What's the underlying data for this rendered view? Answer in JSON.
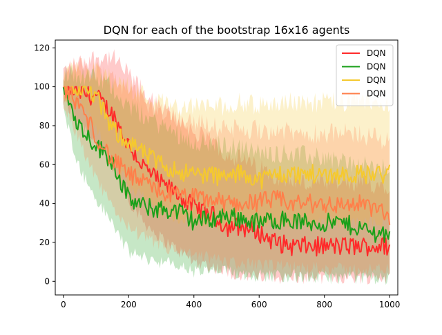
{
  "chart_data": {
    "type": "line",
    "title": "DQN for each of the bootstrap 16x16 agents",
    "xlabel": "",
    "ylabel": "",
    "xlim": [
      -25,
      1025
    ],
    "ylim": [
      -7,
      124
    ],
    "x_ticks": [
      0,
      200,
      400,
      600,
      800,
      1000
    ],
    "y_ticks": [
      0,
      20,
      40,
      60,
      80,
      100,
      120
    ],
    "grid": false,
    "legend_position": "top-right",
    "series": [
      {
        "name": "DQN",
        "color": "#ff2a2a",
        "band_alpha": 0.25,
        "x": [
          0,
          50,
          100,
          150,
          200,
          250,
          300,
          350,
          400,
          450,
          500,
          550,
          600,
          650,
          700,
          750,
          800,
          850,
          900,
          950,
          1000
        ],
        "mean": [
          100,
          97,
          95,
          86,
          70,
          58,
          50,
          45,
          38,
          35,
          28,
          28,
          25,
          20,
          18,
          18,
          18,
          18,
          18,
          18,
          18
        ],
        "lower": [
          92,
          82,
          72,
          58,
          42,
          30,
          22,
          16,
          10,
          8,
          5,
          3,
          2,
          2,
          2,
          2,
          2,
          2,
          2,
          2,
          2
        ],
        "upper": [
          108,
          112,
          115,
          115,
          106,
          96,
          88,
          84,
          76,
          72,
          66,
          62,
          58,
          55,
          52,
          50,
          50,
          50,
          50,
          50,
          50
        ]
      },
      {
        "name": "DQN",
        "color": "#1aa01a",
        "band_alpha": 0.25,
        "x": [
          0,
          50,
          100,
          150,
          200,
          250,
          300,
          350,
          400,
          450,
          500,
          550,
          600,
          650,
          700,
          750,
          800,
          850,
          900,
          950,
          1000
        ],
        "mean": [
          98,
          80,
          70,
          62,
          42,
          38,
          37,
          36,
          31,
          32,
          34,
          32,
          30,
          32,
          31,
          30,
          30,
          30,
          28,
          25,
          25
        ],
        "lower": [
          88,
          58,
          42,
          30,
          15,
          12,
          10,
          8,
          5,
          5,
          5,
          4,
          3,
          3,
          3,
          2,
          2,
          2,
          2,
          2,
          1
        ],
        "upper": [
          108,
          106,
          104,
          100,
          90,
          85,
          80,
          76,
          72,
          70,
          70,
          68,
          66,
          66,
          66,
          64,
          64,
          62,
          60,
          58,
          58
        ]
      },
      {
        "name": "DQN",
        "color": "#f5c92e",
        "band_alpha": 0.25,
        "x": [
          0,
          50,
          100,
          150,
          200,
          250,
          300,
          350,
          400,
          450,
          500,
          550,
          600,
          650,
          700,
          750,
          800,
          850,
          900,
          950,
          1000
        ],
        "mean": [
          100,
          100,
          95,
          78,
          72,
          65,
          60,
          57,
          55,
          55,
          53,
          56,
          52,
          55,
          55,
          55,
          55,
          55,
          55,
          55,
          55
        ],
        "lower": [
          95,
          92,
          80,
          60,
          50,
          42,
          36,
          32,
          30,
          30,
          28,
          30,
          28,
          30,
          30,
          30,
          30,
          30,
          30,
          30,
          30
        ],
        "upper": [
          105,
          110,
          108,
          104,
          100,
          96,
          92,
          90,
          90,
          90,
          90,
          92,
          90,
          92,
          92,
          92,
          92,
          92,
          92,
          92,
          92
        ]
      },
      {
        "name": "DQN",
        "color": "#ff7f4a",
        "band_alpha": 0.25,
        "x": [
          0,
          50,
          100,
          150,
          200,
          250,
          300,
          350,
          400,
          450,
          500,
          550,
          600,
          650,
          700,
          750,
          800,
          850,
          900,
          950,
          1000
        ],
        "mean": [
          100,
          90,
          75,
          62,
          55,
          50,
          46,
          44,
          43,
          42,
          40,
          40,
          41,
          42,
          40,
          40,
          40,
          39,
          40,
          38,
          33
        ],
        "lower": [
          92,
          72,
          52,
          38,
          28,
          22,
          18,
          15,
          13,
          12,
          10,
          9,
          8,
          8,
          7,
          7,
          7,
          6,
          6,
          6,
          6
        ],
        "upper": [
          108,
          110,
          108,
          104,
          98,
          92,
          88,
          84,
          82,
          80,
          78,
          78,
          78,
          78,
          76,
          76,
          76,
          76,
          76,
          74,
          72
        ]
      }
    ]
  }
}
